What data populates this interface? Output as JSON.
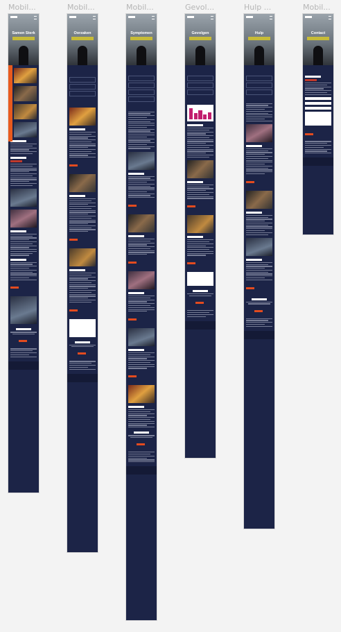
{
  "frames": [
    {
      "label": "Mobil...",
      "title": "Samen Sterk"
    },
    {
      "label": "Mobil...",
      "title": "Oorzaken"
    },
    {
      "label": "Mobil...",
      "title": "Symptomen"
    },
    {
      "label": "Gevol...",
      "title": "Gevolgen"
    },
    {
      "label": "Hulp ...",
      "title": "Hulp"
    },
    {
      "label": "Mobil...",
      "title": "Contact"
    }
  ]
}
